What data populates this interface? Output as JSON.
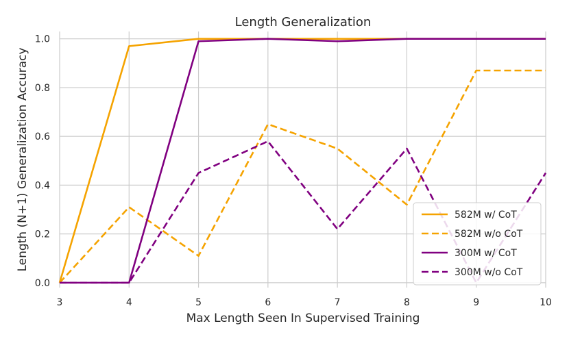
{
  "chart_data": {
    "type": "line",
    "title": "Length Generalization",
    "xlabel": "Max Length Seen In Supervised Training",
    "ylabel": "Length (N+1) Generalization Accuracy",
    "xlim": [
      3,
      10
    ],
    "ylim": [
      -0.02,
      1.03
    ],
    "x_ticks": [
      "3",
      "4",
      "5",
      "6",
      "7",
      "8",
      "9",
      "10"
    ],
    "y_ticks": [
      "0.0",
      "0.2",
      "0.4",
      "0.6",
      "0.8",
      "1.0"
    ],
    "grid": true,
    "legend_position": "lower-right",
    "x": [
      3,
      4,
      5,
      6,
      7,
      8,
      9,
      10
    ],
    "series": [
      {
        "name": "582M w/ CoT",
        "color": "#f5a300",
        "dash": "solid",
        "values": [
          0.0,
          0.97,
          1.0,
          1.0,
          1.0,
          1.0,
          1.0,
          1.0
        ]
      },
      {
        "name": "582M w/o CoT",
        "color": "#f5a300",
        "dash": "dashed",
        "values": [
          0.0,
          0.31,
          0.11,
          0.65,
          0.55,
          0.32,
          0.87,
          0.87
        ]
      },
      {
        "name": "300M w/ CoT",
        "color": "#800080",
        "dash": "solid",
        "values": [
          0.0,
          0.0,
          0.99,
          1.0,
          0.99,
          1.0,
          1.0,
          1.0
        ]
      },
      {
        "name": "300M w/o CoT",
        "color": "#800080",
        "dash": "dashed",
        "values": [
          0.0,
          0.0,
          0.45,
          0.58,
          0.22,
          0.55,
          0.0,
          0.45
        ]
      }
    ]
  }
}
